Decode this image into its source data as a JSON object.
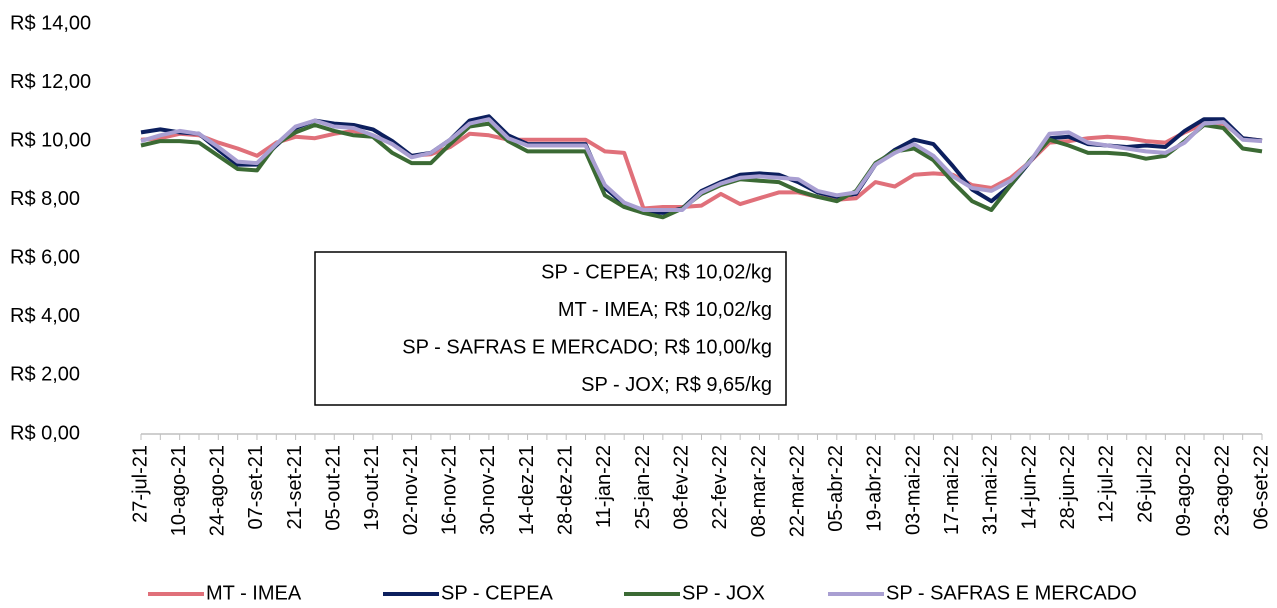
{
  "chart_data": {
    "type": "line",
    "categories": [
      "27-jul-21",
      null,
      "10-ago-21",
      null,
      "24-ago-21",
      null,
      "07-set-21",
      null,
      "21-set-21",
      null,
      "05-out-21",
      null,
      "19-out-21",
      null,
      "02-nov-21",
      null,
      "16-nov-21",
      null,
      "30-nov-21",
      null,
      "14-dez-21",
      null,
      "28-dez-21",
      null,
      "11-jan-22",
      null,
      "25-jan-22",
      null,
      "08-fev-22",
      null,
      "22-fev-22",
      null,
      "08-mar-22",
      null,
      "22-mar-22",
      null,
      "05-abr-22",
      null,
      "19-abr-22",
      null,
      "03-mai-22",
      null,
      "17-mai-22",
      null,
      "31-mai-22",
      null,
      "14-jun-22",
      null,
      "28-jun-22",
      null,
      "12-jul-22",
      null,
      "26-jul-22",
      null,
      "09-ago-22",
      null,
      "23-ago-22",
      null,
      "06-set-22"
    ],
    "series": [
      {
        "name": "MT - IMEA",
        "color": "#e0707a",
        "values": [
          10.05,
          10.1,
          10.25,
          10.2,
          9.95,
          9.75,
          9.5,
          9.95,
          10.15,
          10.1,
          10.25,
          10.35,
          10.2,
          9.9,
          9.5,
          9.55,
          9.8,
          10.25,
          10.2,
          10.05,
          10.05,
          10.05,
          10.05,
          10.05,
          9.65,
          9.6,
          7.7,
          7.75,
          7.75,
          7.8,
          8.2,
          7.85,
          8.05,
          8.25,
          8.25,
          8.1,
          8.0,
          8.05,
          8.6,
          8.45,
          8.85,
          8.9,
          8.85,
          8.5,
          8.4,
          8.75,
          9.3,
          9.95,
          10.0,
          10.1,
          10.15,
          10.1,
          10.0,
          9.95,
          10.3,
          10.6,
          10.6,
          10.1,
          10.02
        ]
      },
      {
        "name": "SP - CEPEA",
        "color": "#0c1f5e",
        "values": [
          10.3,
          10.4,
          10.3,
          10.25,
          9.7,
          9.2,
          9.2,
          9.85,
          10.45,
          10.7,
          10.6,
          10.55,
          10.4,
          10.0,
          9.5,
          9.6,
          10.05,
          10.7,
          10.85,
          10.2,
          9.9,
          9.9,
          9.9,
          9.9,
          8.4,
          7.85,
          7.6,
          7.55,
          7.7,
          8.3,
          8.6,
          8.85,
          8.9,
          8.85,
          8.6,
          8.25,
          8.1,
          8.2,
          9.2,
          9.7,
          10.05,
          9.9,
          9.15,
          8.35,
          7.95,
          8.5,
          9.3,
          10.1,
          10.15,
          9.9,
          9.85,
          9.8,
          9.85,
          9.8,
          10.35,
          10.75,
          10.75,
          10.1,
          10.02
        ]
      },
      {
        "name": "SP - JOX",
        "color": "#3b6a34",
        "values": [
          9.85,
          10.0,
          10.0,
          9.95,
          9.5,
          9.05,
          9.0,
          9.9,
          10.3,
          10.55,
          10.35,
          10.2,
          10.15,
          9.6,
          9.25,
          9.25,
          9.9,
          10.5,
          10.6,
          10.0,
          9.65,
          9.65,
          9.65,
          9.65,
          8.15,
          7.75,
          7.55,
          7.4,
          7.7,
          8.2,
          8.5,
          8.7,
          8.65,
          8.6,
          8.3,
          8.1,
          7.95,
          8.3,
          9.25,
          9.65,
          9.75,
          9.35,
          8.6,
          7.95,
          7.65,
          8.5,
          9.35,
          10.05,
          9.85,
          9.6,
          9.6,
          9.55,
          9.4,
          9.5,
          10.0,
          10.55,
          10.45,
          9.75,
          9.65
        ]
      },
      {
        "name": "SP - SAFRAS E MERCADO",
        "color": "#a99fd2",
        "values": [
          10.0,
          10.2,
          10.35,
          10.25,
          9.8,
          9.3,
          9.25,
          9.9,
          10.5,
          10.7,
          10.5,
          10.45,
          10.2,
          9.9,
          9.45,
          9.6,
          10.05,
          10.6,
          10.75,
          10.1,
          9.85,
          9.85,
          9.85,
          9.85,
          8.5,
          7.9,
          7.65,
          7.65,
          7.65,
          8.25,
          8.55,
          8.75,
          8.8,
          8.75,
          8.7,
          8.3,
          8.15,
          8.25,
          9.2,
          9.6,
          9.9,
          9.5,
          8.8,
          8.4,
          8.3,
          8.65,
          9.3,
          10.25,
          10.3,
          9.95,
          9.85,
          9.75,
          9.65,
          9.6,
          9.95,
          10.6,
          10.65,
          10.05,
          10.0
        ]
      }
    ],
    "ylim": [
      0,
      14
    ],
    "yticks": [
      {
        "value": 0,
        "label": "R$ 0,00"
      },
      {
        "value": 2,
        "label": "R$ 2,00"
      },
      {
        "value": 4,
        "label": "R$ 4,00"
      },
      {
        "value": 6,
        "label": "R$ 6,00"
      },
      {
        "value": 8,
        "label": "R$ 8,00"
      },
      {
        "value": 10,
        "label": "R$ 10,00"
      },
      {
        "value": 12,
        "label": "R$ 12,00"
      },
      {
        "value": 14,
        "label": "R$ 14,00"
      }
    ],
    "grid": false,
    "legend": "bottom",
    "annotations": [
      "SP - CEPEA; R$ 10,02/kg",
      "MT - IMEA; R$ 10,02/kg",
      "SP - SAFRAS E MERCADO; R$ 10,00/kg",
      "SP - JOX; R$ 9,65/kg"
    ]
  }
}
